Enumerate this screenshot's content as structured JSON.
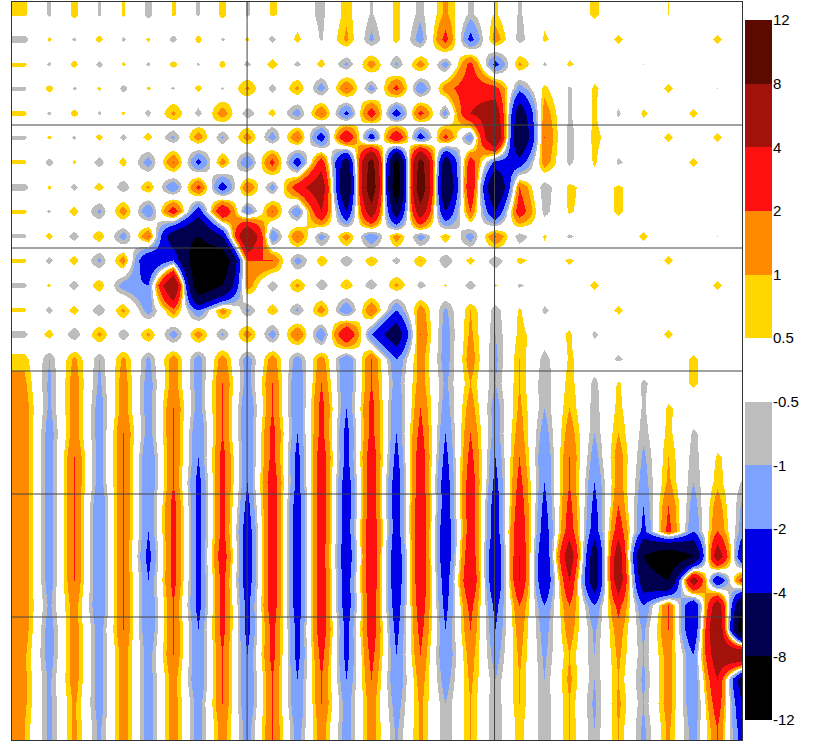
{
  "chart_data": {
    "type": "heatmap",
    "x": [
      82,
      84,
      86,
      88,
      90,
      92,
      94,
      96,
      98,
      100,
      102,
      104,
      106,
      108,
      110,
      112,
      114,
      116,
      118,
      120,
      122,
      124,
      126,
      128,
      130,
      132,
      134,
      136,
      138,
      140
    ],
    "y": [
      49,
      47,
      45,
      43,
      41,
      39,
      37,
      35,
      33,
      31,
      29,
      27,
      25,
      23,
      21,
      19,
      17,
      15,
      13,
      11,
      9,
      7,
      5,
      3,
      1,
      -1,
      -3,
      -5,
      -7,
      -9
    ],
    "z": [
      [
        0.6,
        -0.6,
        0.7,
        -0.6,
        0.6,
        -0.7,
        0.6,
        -0.6,
        0.7,
        -0.6,
        0.6,
        0,
        -0.7,
        0.8,
        -0.6,
        0.7,
        -0.8,
        1.2,
        -0.7,
        0.6,
        -0.6,
        0.3,
        0,
        0.6,
        0,
        0,
        0.5,
        0,
        0,
        0
      ],
      [
        -0.7,
        0.6,
        -0.6,
        0.7,
        -0.6,
        0.6,
        -0.7,
        0.7,
        -0.6,
        0.6,
        -0.7,
        0.7,
        -0.6,
        1.2,
        -1.2,
        0.8,
        -1.5,
        2.5,
        -2.5,
        1.5,
        -0.8,
        0.6,
        0,
        0,
        0.6,
        0,
        0,
        0,
        0.6,
        0
      ],
      [
        0.6,
        -0.6,
        0.7,
        -0.7,
        0.6,
        -0.6,
        0.7,
        -0.6,
        0.7,
        -0.7,
        0.8,
        -0.7,
        0.8,
        -1.2,
        1.5,
        -1.2,
        1.5,
        -1.5,
        2.5,
        -2.5,
        1.2,
        -0.6,
        0.6,
        0,
        0,
        0.5,
        0,
        0,
        0,
        0
      ],
      [
        -0.6,
        0.7,
        -0.6,
        0.6,
        -0.7,
        0.6,
        -0.6,
        0.7,
        -0.6,
        1.2,
        -0.8,
        1.2,
        -1.5,
        2,
        -1.5,
        2.5,
        -2,
        1.5,
        3,
        2.5,
        -1.5,
        0.7,
        -0.6,
        0.6,
        0,
        0,
        0.6,
        0,
        0.5,
        0
      ],
      [
        0.6,
        -0.6,
        0.7,
        -0.6,
        0.6,
        -0.7,
        1.2,
        -0.8,
        1.5,
        -1,
        0.8,
        -1.5,
        2,
        -2.5,
        3,
        -3,
        2.5,
        -1.5,
        4,
        6,
        -6,
        1.5,
        -0.6,
        0.6,
        -0.6,
        0.6,
        0,
        0.6,
        0,
        0
      ],
      [
        -0.6,
        0.6,
        -0.6,
        0.7,
        -0.7,
        0.8,
        -1.2,
        1.5,
        -1.2,
        1.5,
        -1.5,
        2,
        -3,
        4,
        -3,
        4,
        -3,
        2.5,
        -2,
        8,
        -8,
        2,
        -0.8,
        0.7,
        0,
        0,
        0.6,
        0,
        0.6,
        0
      ],
      [
        0.6,
        -0.7,
        0.6,
        -0.8,
        0.8,
        -1.5,
        2,
        -2.5,
        1.5,
        -2,
        2.5,
        -3,
        3,
        -6,
        10,
        -10,
        10,
        -6,
        3,
        -2.5,
        -3,
        1.5,
        -0.7,
        0.6,
        -0.6,
        0,
        0,
        0.6,
        0,
        0
      ],
      [
        -0.7,
        0.6,
        -0.7,
        0.8,
        -1,
        1.2,
        -2,
        2.5,
        -3,
        2,
        -1.5,
        3,
        6,
        -8,
        12,
        -12,
        12,
        -8,
        4,
        -8,
        2,
        -1,
        0.7,
        0,
        0.6,
        0,
        0,
        0,
        0,
        0.5
      ],
      [
        0.6,
        -0.6,
        0.8,
        -1.2,
        1.5,
        -2,
        3,
        -3,
        4,
        -2,
        2,
        -2,
        4,
        -4,
        6,
        -6,
        6,
        -4,
        2,
        -4,
        3,
        -0.8,
        0.6,
        0,
        0.6,
        0,
        0,
        0,
        0,
        0
      ],
      [
        -0.6,
        0.7,
        -0.8,
        1,
        -1.5,
        2,
        -6,
        -8,
        -4,
        8,
        -2,
        2,
        -1.5,
        1.5,
        -2,
        1.5,
        -1.5,
        1,
        -1.5,
        2,
        -1,
        0.6,
        -0.6,
        0,
        0,
        0.6,
        0,
        0,
        0.5,
        0
      ],
      [
        0.6,
        -0.7,
        0.8,
        -1.2,
        1.5,
        -4,
        -2,
        -12,
        -12,
        2,
        2,
        -1.5,
        1,
        -1,
        1,
        -0.8,
        1,
        -1,
        0.8,
        -1,
        0.7,
        0,
        0.6,
        0,
        0,
        0,
        0.6,
        0,
        0,
        0
      ],
      [
        -0.6,
        0.6,
        -0.8,
        1,
        -1.5,
        -2,
        8,
        -12,
        -8,
        1.5,
        -1,
        1.2,
        -1,
        1,
        -1,
        1.2,
        -0.8,
        0.6,
        -0.8,
        0.6,
        -0.6,
        0,
        0,
        0.6,
        0,
        0,
        0,
        0,
        0.6,
        0
      ],
      [
        0.6,
        -0.7,
        0.8,
        -1,
        1.2,
        -1.5,
        1.5,
        -2,
        1.5,
        -1.2,
        1,
        -1.2,
        1.5,
        -2,
        2,
        -2,
        1.5,
        -1.2,
        1,
        -0.8,
        0.6,
        -0.6,
        0,
        0,
        0.6,
        0,
        0,
        0,
        0,
        0
      ],
      [
        -0.7,
        0.8,
        -1,
        1.2,
        -1,
        1.2,
        -1.5,
        1.5,
        -1.2,
        1.5,
        -1.5,
        2,
        -2,
        4,
        -2,
        -6,
        2,
        -1.5,
        1.2,
        -1,
        0.7,
        0,
        0.6,
        -0.6,
        0,
        0,
        0.6,
        0,
        0,
        0
      ],
      [
        0.8,
        -1,
        1.2,
        -1,
        1.2,
        -1.2,
        1.5,
        -1.5,
        1.5,
        -1.5,
        1.5,
        -1.5,
        1.5,
        -2,
        2,
        -2,
        1.5,
        -1.5,
        1.5,
        -1.2,
        1,
        -0.8,
        0.6,
        0,
        -0.6,
        0,
        0,
        0.6,
        0,
        0
      ],
      [
        1.2,
        -1.2,
        1.5,
        -1.2,
        1.5,
        -1.5,
        1.5,
        -1.5,
        2,
        -1.5,
        2,
        -2,
        2,
        -2,
        2,
        -1.5,
        1.5,
        -1.2,
        1,
        -1,
        1,
        -1,
        0.8,
        -0.7,
        0.6,
        -0.6,
        0,
        0.6,
        0,
        0
      ],
      [
        1.5,
        -1.2,
        1.5,
        -1.5,
        1.5,
        -1.5,
        2,
        -1.5,
        2,
        -2,
        2,
        -2,
        2.5,
        -2,
        2.5,
        -2,
        2,
        -1.5,
        1.5,
        -1.5,
        1.2,
        -1,
        1,
        -0.8,
        0.7,
        -0.6,
        0.6,
        0,
        0,
        0.5
      ],
      [
        1.5,
        -1.5,
        1.5,
        -1.5,
        2,
        -1.5,
        2,
        -2,
        2,
        -2,
        2.5,
        -2,
        2.5,
        -2.5,
        2.5,
        -2,
        2.5,
        -2,
        2,
        -1.5,
        1.5,
        -1.5,
        1.5,
        -1,
        1,
        -0.8,
        0.7,
        -0.6,
        0,
        0
      ],
      [
        1.5,
        -1.5,
        2,
        -1.5,
        2,
        -2,
        2,
        -2,
        2.5,
        -2,
        2.5,
        -2.5,
        3,
        -2.5,
        3,
        -2.5,
        3,
        -2.5,
        2.5,
        -2,
        2,
        -2,
        2,
        -1.5,
        1.5,
        -1.2,
        1,
        -0.8,
        0.6,
        0
      ],
      [
        1.5,
        -1.5,
        2,
        -1.5,
        2,
        -2,
        2,
        -2.5,
        2.5,
        -2,
        3,
        -2.5,
        3,
        -3,
        3,
        -3,
        3,
        -3,
        3,
        -2.5,
        2.5,
        -2,
        2,
        -2,
        1.5,
        -1.5,
        1.2,
        -1,
        0.8,
        -0.6
      ],
      [
        1.5,
        -1.5,
        2,
        -2,
        2,
        -2,
        2.5,
        -2.5,
        2.5,
        -2.5,
        3,
        -3,
        3,
        -3,
        3,
        -3,
        3.5,
        -3,
        3,
        -3,
        3,
        -2.5,
        2.5,
        -2.5,
        2,
        -2,
        2,
        -1.5,
        1.5,
        -1.2
      ],
      [
        1.5,
        -1.5,
        2,
        -2,
        2,
        -2,
        2.5,
        -2.5,
        2.5,
        -3,
        3,
        -3,
        3,
        -3,
        3.5,
        -3,
        3.5,
        -3.5,
        3,
        -3,
        3.5,
        -3,
        3,
        -3,
        3,
        -2.5,
        2.5,
        -2,
        2,
        -1.5
      ],
      [
        1.5,
        -1.5,
        2,
        -2,
        2,
        -2.5,
        2.5,
        -2.5,
        3,
        -3,
        3,
        -3,
        3,
        -3.5,
        3.5,
        -3.5,
        3.5,
        -3.5,
        3.5,
        -4,
        4,
        -4,
        6,
        -6,
        6,
        -8,
        -12,
        -8,
        6,
        -4
      ],
      [
        1.5,
        -1.5,
        2,
        -2,
        2,
        -2,
        2.5,
        -2.5,
        2.5,
        -3,
        3,
        -3,
        3,
        -3,
        3.5,
        -3.5,
        3.5,
        -3,
        4,
        -4,
        4,
        -4,
        4,
        -6,
        6,
        -6,
        -8,
        6,
        -4,
        3
      ],
      [
        1.5,
        -1.2,
        1.5,
        -2,
        2,
        -2,
        2,
        -2.5,
        2.5,
        -2.5,
        3,
        -3,
        3,
        -3,
        3,
        -3,
        3,
        -2.5,
        2.5,
        -2.5,
        2,
        -2,
        2,
        -2,
        2.5,
        -2,
        2,
        -4,
        6,
        -8
      ],
      [
        1.5,
        -1.5,
        1.5,
        -1.5,
        2,
        -2,
        2,
        -2,
        2.5,
        -2.5,
        2.5,
        -2.5,
        3,
        -2.5,
        3,
        -2.5,
        2.5,
        -2,
        2,
        -2,
        1.5,
        -1.5,
        1.5,
        -1.2,
        1.5,
        -1.2,
        2,
        -4,
        8,
        -12
      ],
      [
        1.2,
        -1.5,
        1.5,
        -1.5,
        1.5,
        -1.5,
        2,
        -2,
        2,
        -2,
        2.5,
        -2.5,
        2.5,
        -2.5,
        2.5,
        -2,
        2,
        -2,
        1.5,
        -1.5,
        1.2,
        -1.2,
        1,
        -1,
        1.2,
        -1,
        1.5,
        -2,
        6,
        8
      ],
      [
        1.2,
        -1.2,
        1.5,
        -1.5,
        1.5,
        -1.5,
        1.5,
        -2,
        2,
        -2,
        2,
        -2,
        2,
        -2,
        2,
        -2,
        1.5,
        -1.5,
        1.2,
        -1,
        1,
        -1,
        1.2,
        -1,
        1,
        -1.2,
        1.5,
        -2,
        4,
        -6
      ],
      [
        1.2,
        -1.2,
        1.2,
        -1.5,
        1.5,
        -1.5,
        1.5,
        -1.5,
        2,
        -2,
        2,
        -2,
        2,
        -1.5,
        1.5,
        -1.5,
        1.2,
        -1,
        1,
        -1,
        1,
        -1,
        1,
        -1.2,
        1.2,
        -1,
        1.5,
        -2,
        3,
        -4
      ],
      [
        1,
        -1.2,
        1.2,
        -1.2,
        1.5,
        -1.5,
        1.5,
        -1.5,
        1.5,
        -1.5,
        2,
        -1.5,
        1.5,
        -1.5,
        1.5,
        -1.2,
        1.2,
        -1,
        1,
        -1,
        0.8,
        -1,
        1,
        -1,
        1,
        -1.2,
        1.2,
        -1.5,
        2,
        -3
      ]
    ],
    "xlim": [
      81,
      140
    ],
    "ylim": [
      -10,
      50
    ],
    "xticks": [
      100,
      120
    ],
    "yticks": [
      0,
      10,
      20,
      30,
      40
    ],
    "grid": true,
    "tick_labels": false,
    "colorbar": {
      "levels": [
        -12,
        -8,
        -4,
        -2,
        -1,
        -0.5,
        0.5,
        1,
        2,
        4,
        8,
        12
      ],
      "colors": [
        "#000000",
        "#00004e",
        "#0000e6",
        "#7ea2ff",
        "#bdbdbd",
        "#ffffff",
        "#ffd600",
        "#ff8a00",
        "#ff1010",
        "#a3120a",
        "#5c0a00"
      ]
    }
  }
}
